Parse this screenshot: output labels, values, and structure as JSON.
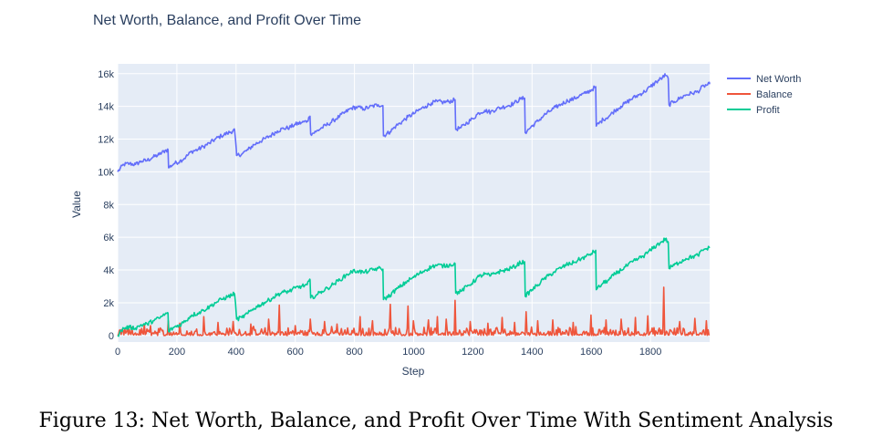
{
  "caption": "Figure 13: Net Worth, Balance, and Profit Over Time With Sentiment Analysis",
  "chart_data": {
    "type": "line",
    "title": "Net Worth, Balance, and Profit Over Time",
    "xlabel": "Step",
    "ylabel": "Value",
    "xlim": [
      0,
      2000
    ],
    "ylim": [
      -400,
      16600
    ],
    "xticks": [
      0,
      200,
      400,
      600,
      800,
      1000,
      1200,
      1400,
      1600,
      1800
    ],
    "xtick_labels": [
      "0",
      "200",
      "400",
      "600",
      "800",
      "1000",
      "1200",
      "1400",
      "1600",
      "1800"
    ],
    "yticks": [
      0,
      2000,
      4000,
      6000,
      8000,
      10000,
      12000,
      14000,
      16000
    ],
    "ytick_labels": [
      "0",
      "2k",
      "4k",
      "6k",
      "8k",
      "10k",
      "12k",
      "14k",
      "16k"
    ],
    "grid": true,
    "legend_position": "top-right",
    "colors": {
      "plot_bg": "#e5ecf6",
      "grid": "#ffffff",
      "net_worth": "#636efa",
      "balance": "#ef553b",
      "profit": "#00cc96"
    },
    "series": [
      {
        "name": "Net Worth",
        "color": "#636efa",
        "points": [
          [
            0,
            10000
          ],
          [
            20,
            10450
          ],
          [
            40,
            10500
          ],
          [
            60,
            10450
          ],
          [
            80,
            10650
          ],
          [
            100,
            10700
          ],
          [
            120,
            10900
          ],
          [
            140,
            11050
          ],
          [
            160,
            11300
          ],
          [
            170,
            11350
          ],
          [
            172,
            10250
          ],
          [
            190,
            10500
          ],
          [
            210,
            10650
          ],
          [
            230,
            10900
          ],
          [
            250,
            11250
          ],
          [
            270,
            11350
          ],
          [
            290,
            11550
          ],
          [
            310,
            11750
          ],
          [
            330,
            12000
          ],
          [
            350,
            12200
          ],
          [
            370,
            12350
          ],
          [
            395,
            12550
          ],
          [
            402,
            11000
          ],
          [
            420,
            11100
          ],
          [
            440,
            11350
          ],
          [
            460,
            11650
          ],
          [
            480,
            11850
          ],
          [
            500,
            12050
          ],
          [
            520,
            12250
          ],
          [
            540,
            12500
          ],
          [
            560,
            12650
          ],
          [
            580,
            12700
          ],
          [
            600,
            12900
          ],
          [
            620,
            13000
          ],
          [
            640,
            13100
          ],
          [
            650,
            13400
          ],
          [
            652,
            12300
          ],
          [
            670,
            12450
          ],
          [
            690,
            12700
          ],
          [
            710,
            12900
          ],
          [
            730,
            13150
          ],
          [
            750,
            13400
          ],
          [
            770,
            13650
          ],
          [
            790,
            13900
          ],
          [
            810,
            13950
          ],
          [
            830,
            13850
          ],
          [
            850,
            13950
          ],
          [
            880,
            14100
          ],
          [
            896,
            14050
          ],
          [
            898,
            12200
          ],
          [
            920,
            12450
          ],
          [
            940,
            12800
          ],
          [
            960,
            13050
          ],
          [
            980,
            13350
          ],
          [
            1000,
            13550
          ],
          [
            1020,
            13800
          ],
          [
            1040,
            14000
          ],
          [
            1060,
            14200
          ],
          [
            1080,
            14300
          ],
          [
            1100,
            14250
          ],
          [
            1120,
            14300
          ],
          [
            1140,
            14400
          ],
          [
            1142,
            12600
          ],
          [
            1160,
            12700
          ],
          [
            1180,
            13000
          ],
          [
            1200,
            13250
          ],
          [
            1220,
            13600
          ],
          [
            1240,
            13750
          ],
          [
            1260,
            13650
          ],
          [
            1280,
            13850
          ],
          [
            1300,
            13950
          ],
          [
            1320,
            14050
          ],
          [
            1340,
            14200
          ],
          [
            1360,
            14450
          ],
          [
            1375,
            14500
          ],
          [
            1377,
            12400
          ],
          [
            1400,
            12800
          ],
          [
            1420,
            13100
          ],
          [
            1440,
            13450
          ],
          [
            1460,
            13700
          ],
          [
            1480,
            13950
          ],
          [
            1500,
            14150
          ],
          [
            1520,
            14350
          ],
          [
            1540,
            14450
          ],
          [
            1560,
            14650
          ],
          [
            1580,
            14800
          ],
          [
            1600,
            15000
          ],
          [
            1615,
            15200
          ],
          [
            1617,
            12800
          ],
          [
            1640,
            13200
          ],
          [
            1660,
            13400
          ],
          [
            1680,
            13750
          ],
          [
            1700,
            14000
          ],
          [
            1720,
            14250
          ],
          [
            1740,
            14500
          ],
          [
            1760,
            14700
          ],
          [
            1780,
            14900
          ],
          [
            1800,
            15200
          ],
          [
            1820,
            15500
          ],
          [
            1840,
            15750
          ],
          [
            1850,
            15900
          ],
          [
            1860,
            15700
          ],
          [
            1863,
            14100
          ],
          [
            1880,
            14300
          ],
          [
            1900,
            14500
          ],
          [
            1920,
            14700
          ],
          [
            1940,
            14800
          ],
          [
            1960,
            14900
          ],
          [
            1980,
            15250
          ],
          [
            1990,
            15300
          ],
          [
            2000,
            15350
          ]
        ]
      },
      {
        "name": "Balance",
        "color": "#ef553b",
        "baseline": [
          0,
          600
        ],
        "spikes": [
          [
            90,
            700
          ],
          [
            110,
            600
          ],
          [
            170,
            900
          ],
          [
            210,
            750
          ],
          [
            290,
            1150
          ],
          [
            340,
            800
          ],
          [
            390,
            850
          ],
          [
            450,
            700
          ],
          [
            510,
            1000
          ],
          [
            545,
            1850
          ],
          [
            600,
            600
          ],
          [
            650,
            1000
          ],
          [
            700,
            850
          ],
          [
            740,
            700
          ],
          [
            820,
            1150
          ],
          [
            860,
            900
          ],
          [
            920,
            1900
          ],
          [
            980,
            1800
          ],
          [
            1000,
            900
          ],
          [
            1050,
            950
          ],
          [
            1080,
            1150
          ],
          [
            1110,
            1000
          ],
          [
            1140,
            2150
          ],
          [
            1190,
            850
          ],
          [
            1250,
            750
          ],
          [
            1300,
            1100
          ],
          [
            1340,
            800
          ],
          [
            1380,
            1450
          ],
          [
            1420,
            900
          ],
          [
            1470,
            950
          ],
          [
            1540,
            800
          ],
          [
            1600,
            1250
          ],
          [
            1650,
            950
          ],
          [
            1700,
            1000
          ],
          [
            1750,
            1100
          ],
          [
            1790,
            1200
          ],
          [
            1845,
            2950
          ],
          [
            1900,
            850
          ],
          [
            1950,
            1050
          ],
          [
            1990,
            900
          ]
        ]
      },
      {
        "name": "Profit",
        "color": "#00cc96",
        "points": [
          [
            0,
            0
          ],
          [
            20,
            450
          ],
          [
            40,
            500
          ],
          [
            60,
            450
          ],
          [
            80,
            650
          ],
          [
            100,
            700
          ],
          [
            120,
            900
          ],
          [
            140,
            1050
          ],
          [
            160,
            1300
          ],
          [
            170,
            1350
          ],
          [
            172,
            250
          ],
          [
            190,
            500
          ],
          [
            210,
            650
          ],
          [
            230,
            900
          ],
          [
            250,
            1250
          ],
          [
            270,
            1350
          ],
          [
            290,
            1550
          ],
          [
            310,
            1750
          ],
          [
            330,
            2000
          ],
          [
            350,
            2200
          ],
          [
            370,
            2350
          ],
          [
            395,
            2550
          ],
          [
            402,
            1000
          ],
          [
            420,
            1100
          ],
          [
            440,
            1350
          ],
          [
            460,
            1650
          ],
          [
            480,
            1850
          ],
          [
            500,
            2050
          ],
          [
            520,
            2250
          ],
          [
            540,
            2500
          ],
          [
            560,
            2650
          ],
          [
            580,
            2700
          ],
          [
            600,
            2900
          ],
          [
            620,
            3000
          ],
          [
            640,
            3100
          ],
          [
            650,
            3400
          ],
          [
            652,
            2300
          ],
          [
            670,
            2450
          ],
          [
            690,
            2700
          ],
          [
            710,
            2900
          ],
          [
            730,
            3150
          ],
          [
            750,
            3400
          ],
          [
            770,
            3650
          ],
          [
            790,
            3900
          ],
          [
            810,
            3950
          ],
          [
            830,
            3850
          ],
          [
            850,
            3950
          ],
          [
            880,
            4100
          ],
          [
            896,
            4050
          ],
          [
            898,
            2200
          ],
          [
            920,
            2450
          ],
          [
            940,
            2800
          ],
          [
            960,
            3050
          ],
          [
            980,
            3350
          ],
          [
            1000,
            3550
          ],
          [
            1020,
            3800
          ],
          [
            1040,
            4000
          ],
          [
            1060,
            4200
          ],
          [
            1080,
            4300
          ],
          [
            1100,
            4250
          ],
          [
            1120,
            4300
          ],
          [
            1140,
            4400
          ],
          [
            1142,
            2600
          ],
          [
            1160,
            2700
          ],
          [
            1180,
            3000
          ],
          [
            1200,
            3250
          ],
          [
            1220,
            3600
          ],
          [
            1240,
            3750
          ],
          [
            1260,
            3650
          ],
          [
            1280,
            3850
          ],
          [
            1300,
            3950
          ],
          [
            1320,
            4050
          ],
          [
            1340,
            4200
          ],
          [
            1360,
            4450
          ],
          [
            1375,
            4500
          ],
          [
            1377,
            2400
          ],
          [
            1400,
            2800
          ],
          [
            1420,
            3100
          ],
          [
            1440,
            3450
          ],
          [
            1460,
            3700
          ],
          [
            1480,
            3950
          ],
          [
            1500,
            4150
          ],
          [
            1520,
            4350
          ],
          [
            1540,
            4450
          ],
          [
            1560,
            4650
          ],
          [
            1580,
            4800
          ],
          [
            1600,
            5000
          ],
          [
            1615,
            5200
          ],
          [
            1617,
            2800
          ],
          [
            1640,
            3200
          ],
          [
            1660,
            3400
          ],
          [
            1680,
            3750
          ],
          [
            1700,
            4000
          ],
          [
            1720,
            4250
          ],
          [
            1740,
            4500
          ],
          [
            1760,
            4700
          ],
          [
            1780,
            4900
          ],
          [
            1800,
            5200
          ],
          [
            1820,
            5500
          ],
          [
            1840,
            5750
          ],
          [
            1850,
            5900
          ],
          [
            1860,
            5700
          ],
          [
            1863,
            4100
          ],
          [
            1880,
            4300
          ],
          [
            1900,
            4500
          ],
          [
            1920,
            4700
          ],
          [
            1940,
            4800
          ],
          [
            1960,
            4900
          ],
          [
            1980,
            5250
          ],
          [
            1990,
            5300
          ],
          [
            2000,
            5350
          ]
        ]
      }
    ]
  }
}
